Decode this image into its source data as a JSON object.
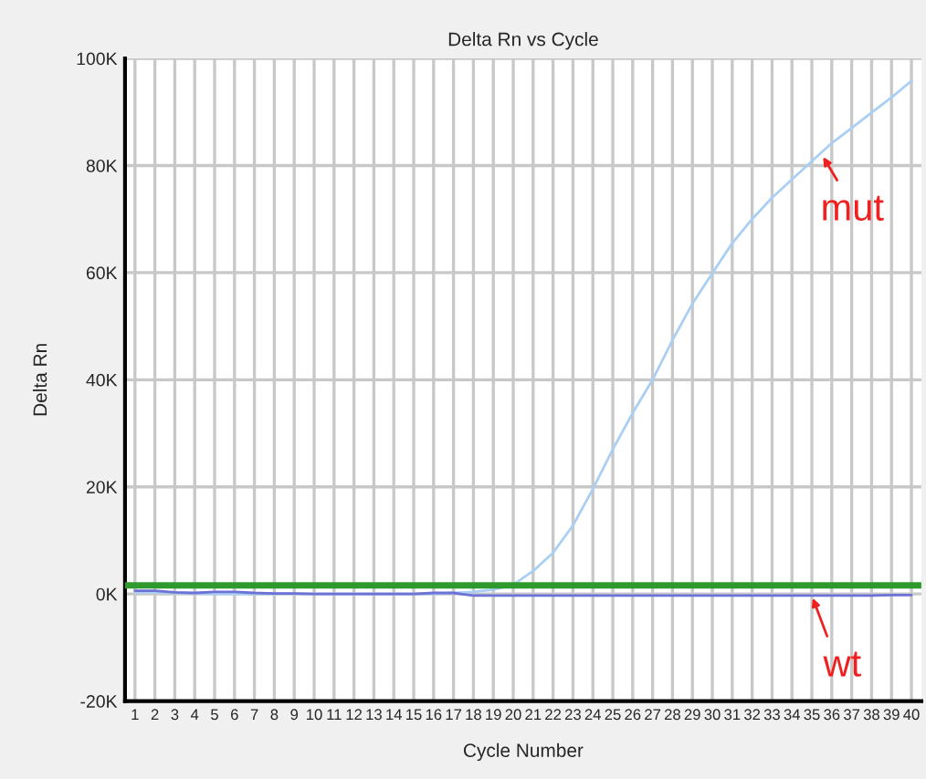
{
  "chart_data": {
    "type": "line",
    "title": "Delta Rn vs Cycle",
    "xlabel": "Cycle Number",
    "ylabel": "Delta Rn",
    "x": [
      1,
      2,
      3,
      4,
      5,
      6,
      7,
      8,
      9,
      10,
      11,
      12,
      13,
      14,
      15,
      16,
      17,
      18,
      19,
      20,
      21,
      22,
      23,
      24,
      25,
      26,
      27,
      28,
      29,
      30,
      31,
      32,
      33,
      34,
      35,
      36,
      37,
      38,
      39,
      40
    ],
    "series": [
      {
        "color": "#a9cff5",
        "values": [
          300,
          300,
          200,
          100,
          0,
          0,
          0,
          0,
          0,
          0,
          0,
          0,
          0,
          0,
          0,
          0,
          200,
          400,
          800,
          1700,
          4300,
          7700,
          12800,
          19600,
          27000,
          33800,
          40000,
          47400,
          54200,
          59900,
          65500,
          70000,
          74000,
          77400,
          80800,
          84200,
          87000,
          89900,
          92700,
          95800
        ]
      },
      {
        "color": "#6c72d6",
        "values": [
          600,
          600,
          300,
          200,
          400,
          400,
          200,
          100,
          100,
          0,
          0,
          0,
          0,
          0,
          0,
          200,
          200,
          -300,
          -300,
          -300,
          -300,
          -300,
          -300,
          -300,
          -300,
          -300,
          -300,
          -300,
          -300,
          -300,
          -300,
          -300,
          -300,
          -300,
          -300,
          -300,
          -300,
          -300,
          -200,
          -200
        ]
      }
    ],
    "xlim": [
      0.5,
      40.5
    ],
    "ylim": [
      -20000,
      100000
    ],
    "xticks": [
      1,
      2,
      3,
      4,
      5,
      6,
      7,
      8,
      9,
      10,
      11,
      12,
      13,
      14,
      15,
      16,
      17,
      18,
      19,
      20,
      21,
      22,
      23,
      24,
      25,
      26,
      27,
      28,
      29,
      30,
      31,
      32,
      33,
      34,
      35,
      36,
      37,
      38,
      39,
      40
    ],
    "yticks": [
      {
        "value": -20000,
        "label": "-20K"
      },
      {
        "value": 0,
        "label": "0K"
      },
      {
        "value": 20000,
        "label": "20K"
      },
      {
        "value": 40000,
        "label": "40K"
      },
      {
        "value": 60000,
        "label": "60K"
      },
      {
        "value": 80000,
        "label": "80K"
      },
      {
        "value": 100000,
        "label": "100K"
      }
    ],
    "ref_lines": [
      {
        "axis": "y",
        "value": 1600,
        "color": "#2e9a2e"
      }
    ],
    "annotations": [
      {
        "text": "mut",
        "x": 35.5,
        "y": 82000
      },
      {
        "text": "wt",
        "x": 35,
        "y": -300
      }
    ],
    "grid": true,
    "legend": false,
    "marker": "none",
    "line_style": "solid"
  }
}
